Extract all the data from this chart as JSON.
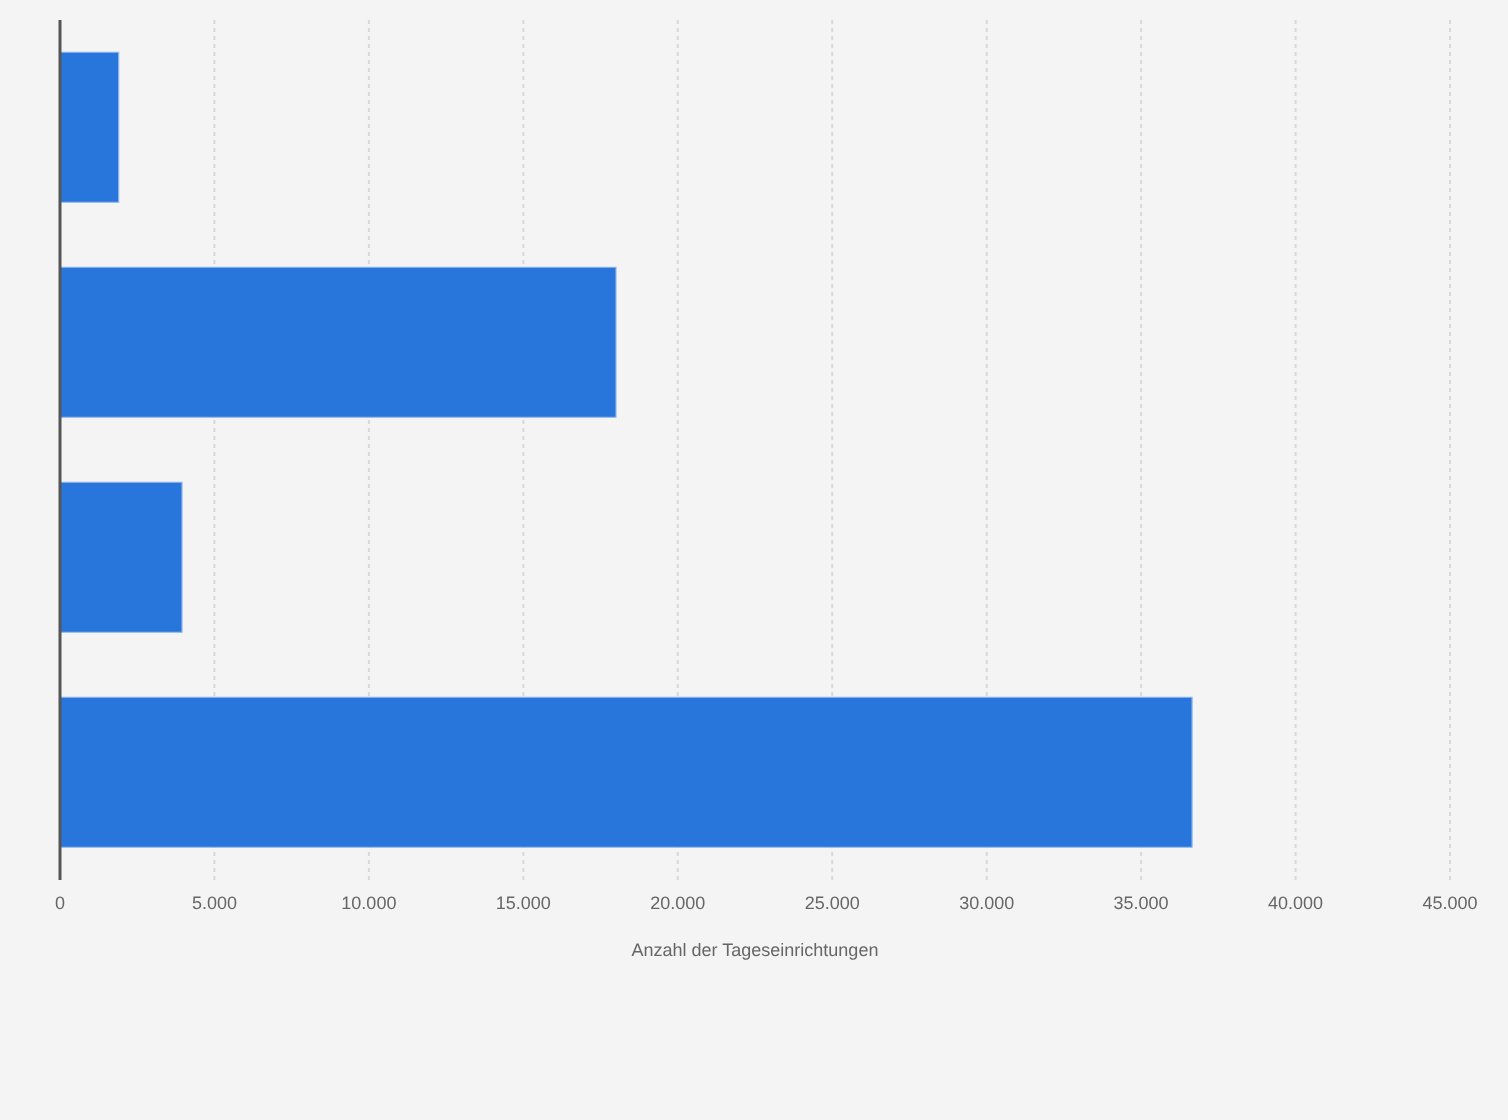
{
  "chart_data": {
    "type": "bar",
    "orientation": "horizontal",
    "categories": [
      null,
      null,
      null,
      null
    ],
    "values": [
      1900,
      18000,
      3950,
      36650
    ],
    "color": "#2876dc",
    "xlabel": "Anzahl der Tageseinrichtungen",
    "xlim": [
      0,
      45000
    ],
    "xticks": [
      0,
      {
        "value": 5000,
        "label": "5.000"
      },
      {
        "value": 10000,
        "label": "10.000"
      },
      {
        "value": 15000,
        "label": "15.000"
      },
      {
        "value": 20000,
        "label": "20.000"
      },
      {
        "value": 25000,
        "label": "25.000"
      },
      {
        "value": 30000,
        "label": "30.000"
      },
      {
        "value": 35000,
        "label": "35.000"
      },
      {
        "value": 40000,
        "label": "40.000"
      },
      {
        "value": 45000,
        "label": "45.000"
      }
    ],
    "grid": "x",
    "tick_labels": "x"
  }
}
